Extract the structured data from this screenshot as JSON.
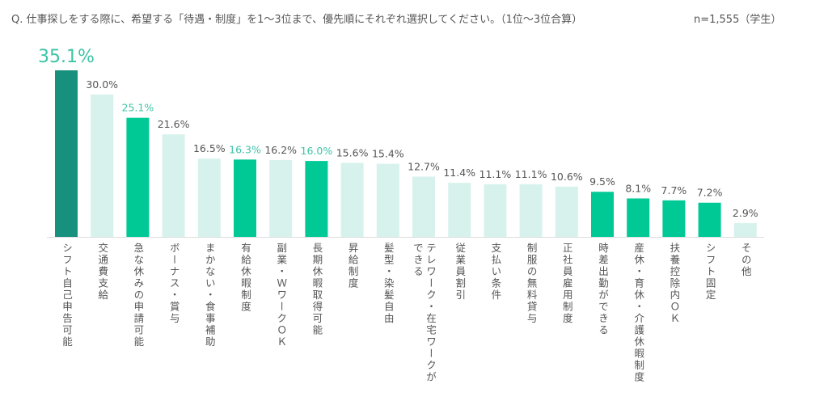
{
  "question": "Q. 仕事探しをする際に、希望する「待遇・制度」を1～3位まで、優先順にそれぞれ選択してください。（1位～3位合算）",
  "sample": "n=1,555（学生）",
  "colors": {
    "top": "#17907e",
    "highlight": "#00c995",
    "normal": "#d7f2ec",
    "label_highlight": "#3cc4a6",
    "label_normal": "#555555",
    "axis": "#dddddd"
  },
  "chart_data": {
    "type": "bar",
    "title": "",
    "xlabel": "",
    "ylabel": "",
    "unit": "%",
    "ylim": [
      0,
      36
    ],
    "grid": false,
    "categories": [
      "シフト自己申告可能",
      "交通費支給",
      "急な休みの申請可能",
      "ボーナス・賞与",
      "まかない・食事補助",
      "有給休暇制度",
      "副業・ＷワークＯＫ",
      "長期休暇取得可能",
      "昇給制度",
      "髪型・染髪自由",
      "テレワーク・在宅ワークが\nできる",
      "従業員割引",
      "支払い条件",
      "制服の無料貸与",
      "正社員雇用制度",
      "時差出勤ができる",
      "産休・育休・介護休暇制度",
      "扶養控除内ＯＫ",
      "シフト固定",
      "その他"
    ],
    "values": [
      35.1,
      30.0,
      25.1,
      21.6,
      16.5,
      16.3,
      16.2,
      16.0,
      15.6,
      15.4,
      12.7,
      11.4,
      11.1,
      11.1,
      10.6,
      9.5,
      8.1,
      7.7,
      7.2,
      2.9
    ],
    "data_labels": [
      "35.1%",
      "30.0%",
      "25.1%",
      "21.6%",
      "16.5%",
      "16.3%",
      "16.2%",
      "16.0%",
      "15.6%",
      "15.4%",
      "12.7%",
      "11.4%",
      "11.1%",
      "11.1%",
      "10.6%",
      "9.5%",
      "8.1%",
      "7.7%",
      "7.2%",
      "2.9%"
    ],
    "bar_style": [
      "top",
      "normal",
      "highlight",
      "normal",
      "normal",
      "highlight",
      "normal",
      "highlight",
      "normal",
      "normal",
      "normal",
      "normal",
      "normal",
      "normal",
      "normal",
      "highlight",
      "highlight",
      "highlight",
      "highlight",
      "normal"
    ],
    "label_style": [
      "highlight",
      "normal",
      "highlight",
      "normal",
      "normal",
      "highlight",
      "normal",
      "highlight",
      "normal",
      "normal",
      "normal",
      "normal",
      "normal",
      "normal",
      "normal",
      "normal",
      "normal",
      "normal",
      "normal",
      "normal"
    ]
  }
}
